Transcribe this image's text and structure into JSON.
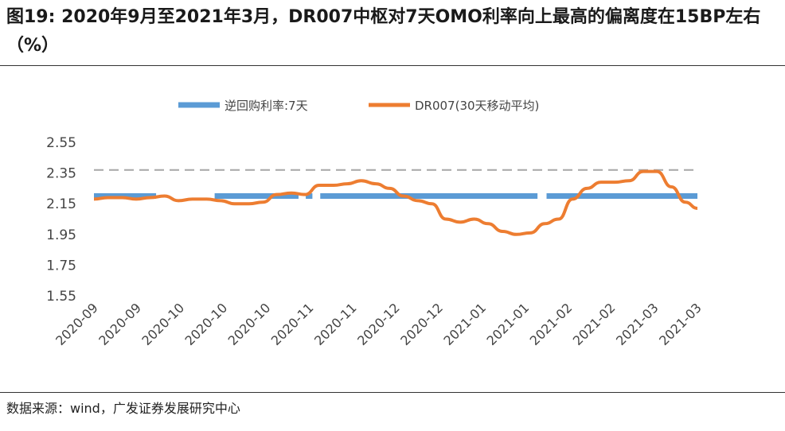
{
  "header": {
    "title": "图19: 2020年9月至2021年3月，DR007中枢对7天OMO利率向上最高的偏离度在15BP左右（%）"
  },
  "footer": {
    "source": "数据来源：wind，广发证券发展研究中心"
  },
  "chart_data": {
    "type": "line",
    "title": "图19: 2020年9月至2021年3月，DR007中枢对7天OMO利率向上最高的偏离度在15BP左右（%）",
    "xlabel": "",
    "ylabel": "",
    "ylim": [
      1.55,
      2.55
    ],
    "yticks": [
      "2.55",
      "2.35",
      "2.15",
      "1.95",
      "1.75",
      "1.55"
    ],
    "xtick_labels": [
      "2020-09",
      "2020-09",
      "2020-10",
      "2020-10",
      "2020-10",
      "2020-11",
      "2020-11",
      "2020-12",
      "2020-12",
      "2021-01",
      "2021-01",
      "2021-02",
      "2021-02",
      "2021-03",
      "2021-03"
    ],
    "legend_position": "top",
    "reference_line": {
      "value": 2.37,
      "style": "dashed",
      "color": "#a6a6a6"
    },
    "series": [
      {
        "name": "逆回购利率:7天",
        "color": "#5b9bd5",
        "segments": [
          {
            "from": 0,
            "to": 0.103,
            "value": 2.2
          },
          {
            "from": 0.2,
            "to": 0.339,
            "value": 2.2
          },
          {
            "from": 0.351,
            "to": 0.362,
            "value": 2.2
          },
          {
            "from": 0.375,
            "to": 0.735,
            "value": 2.2
          },
          {
            "from": 0.75,
            "to": 1.0,
            "value": 2.2
          }
        ]
      },
      {
        "name": "DR007(30天移动平均)",
        "color": "#ed7d31",
        "x": [
          0,
          0.023,
          0.047,
          0.07,
          0.093,
          0.117,
          0.14,
          0.163,
          0.187,
          0.21,
          0.233,
          0.257,
          0.28,
          0.303,
          0.327,
          0.35,
          0.373,
          0.397,
          0.42,
          0.443,
          0.467,
          0.49,
          0.513,
          0.537,
          0.56,
          0.583,
          0.607,
          0.63,
          0.653,
          0.677,
          0.7,
          0.723,
          0.747,
          0.77,
          0.793,
          0.817,
          0.84,
          0.863,
          0.887,
          0.91,
          0.933,
          0.957,
          0.98,
          1.0
        ],
        "values": [
          2.18,
          2.19,
          2.19,
          2.18,
          2.19,
          2.2,
          2.17,
          2.18,
          2.18,
          2.17,
          2.15,
          2.15,
          2.16,
          2.21,
          2.22,
          2.21,
          2.27,
          2.27,
          2.28,
          2.3,
          2.28,
          2.25,
          2.2,
          2.17,
          2.15,
          2.05,
          2.03,
          2.05,
          2.02,
          1.97,
          1.95,
          1.96,
          2.02,
          2.05,
          2.18,
          2.25,
          2.29,
          2.29,
          2.3,
          2.36,
          2.36,
          2.26,
          2.16,
          2.12
        ]
      }
    ]
  }
}
